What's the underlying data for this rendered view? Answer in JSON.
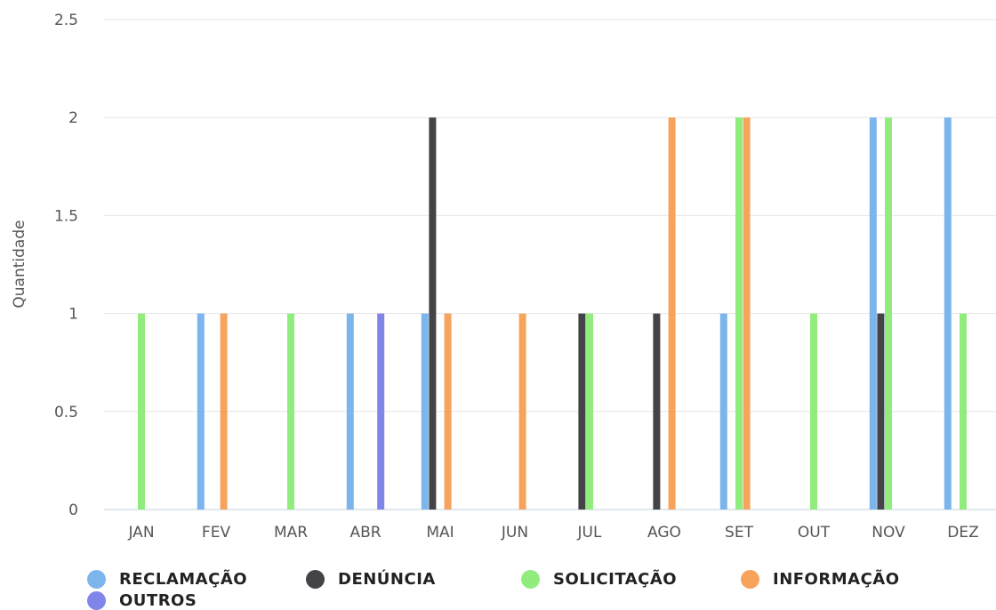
{
  "chart_data": {
    "type": "bar",
    "categories": [
      "JAN",
      "FEV",
      "MAR",
      "ABR",
      "MAI",
      "JUN",
      "JUL",
      "AGO",
      "SET",
      "OUT",
      "NOV",
      "DEZ"
    ],
    "ylabel": "Quantidade",
    "ylim": [
      0,
      2.5
    ],
    "yticks": [
      "0",
      "0.5",
      "1",
      "1.5",
      "2",
      "2.5"
    ],
    "grid": true,
    "legend_position": "bottom",
    "series": [
      {
        "name": "RECLAMAÇÃO",
        "color": "#7cb5ec",
        "values": [
          0,
          1,
          0,
          1,
          1,
          0,
          0,
          0,
          1,
          0,
          2,
          2
        ]
      },
      {
        "name": "DENÚNCIA",
        "color": "#434348",
        "values": [
          0,
          0,
          0,
          0,
          2,
          0,
          1,
          1,
          0,
          0,
          1,
          0
        ]
      },
      {
        "name": "SOLICITAÇÃO",
        "color": "#90ed7d",
        "values": [
          1,
          0,
          1,
          0,
          0,
          0,
          1,
          0,
          2,
          1,
          2,
          1
        ]
      },
      {
        "name": "INFORMAÇÃO",
        "color": "#f7a35c",
        "values": [
          0,
          1,
          0,
          0,
          1,
          1,
          0,
          2,
          2,
          0,
          0,
          0
        ]
      },
      {
        "name": "OUTROS",
        "color": "#8085e9",
        "values": [
          0,
          0,
          0,
          1,
          0,
          0,
          0,
          0,
          0,
          0,
          0,
          0
        ]
      }
    ]
  }
}
